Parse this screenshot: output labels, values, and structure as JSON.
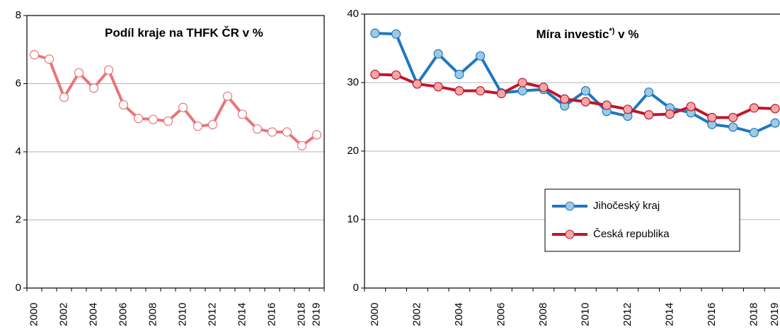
{
  "chart_data": [
    {
      "type": "line",
      "title": "Podíl kraje na THFK ČR v %",
      "categories": [
        "2000",
        null,
        "2002",
        null,
        "2004",
        null,
        "2006",
        null,
        "2008",
        null,
        "2010",
        null,
        "2012",
        null,
        "2014",
        null,
        "2016",
        null,
        "2018",
        "2019"
      ],
      "series": [
        {
          "name": null,
          "color": "#e8767a",
          "marker_fill": "#ffffff",
          "values": [
            6.85,
            6.72,
            5.6,
            6.32,
            5.87,
            6.4,
            5.38,
            4.98,
            4.95,
            4.9,
            5.3,
            4.75,
            4.8,
            5.63,
            5.1,
            4.67,
            4.58,
            4.58,
            4.18,
            4.5
          ]
        }
      ],
      "ylim": [
        0,
        8
      ],
      "yticks": [
        0,
        2,
        4,
        6,
        8
      ],
      "grid": true
    },
    {
      "type": "line",
      "title": "Míra investic",
      "title_sup": "*)",
      "title_suffix": " v %",
      "categories": [
        "2000",
        null,
        "2002",
        null,
        "2004",
        null,
        "2006",
        null,
        "2008",
        null,
        "2010",
        null,
        "2012",
        null,
        "2014",
        null,
        "2016",
        null,
        "2018",
        "2019"
      ],
      "series": [
        {
          "name": "Jihočeský kraj",
          "color": "#1f77c0",
          "marker_fill": "#9ecae1",
          "values": [
            37.2,
            37.1,
            29.8,
            34.2,
            31.2,
            33.9,
            28.5,
            28.8,
            29.0,
            26.6,
            28.8,
            25.8,
            25.1,
            28.6,
            26.3,
            25.6,
            23.9,
            23.5,
            22.7,
            24.1
          ]
        },
        {
          "name": "Česká republika",
          "color": "#c0152a",
          "marker_fill": "#f4a6a6",
          "values": [
            31.2,
            31.1,
            29.8,
            29.4,
            28.8,
            28.8,
            28.4,
            30.0,
            29.3,
            27.6,
            27.2,
            26.7,
            26.1,
            25.3,
            25.4,
            26.5,
            24.9,
            24.9,
            26.3,
            26.2
          ]
        }
      ],
      "ylim": [
        0,
        40
      ],
      "yticks": [
        0,
        10,
        20,
        30,
        40
      ],
      "grid": true,
      "legend": "lower right"
    }
  ]
}
